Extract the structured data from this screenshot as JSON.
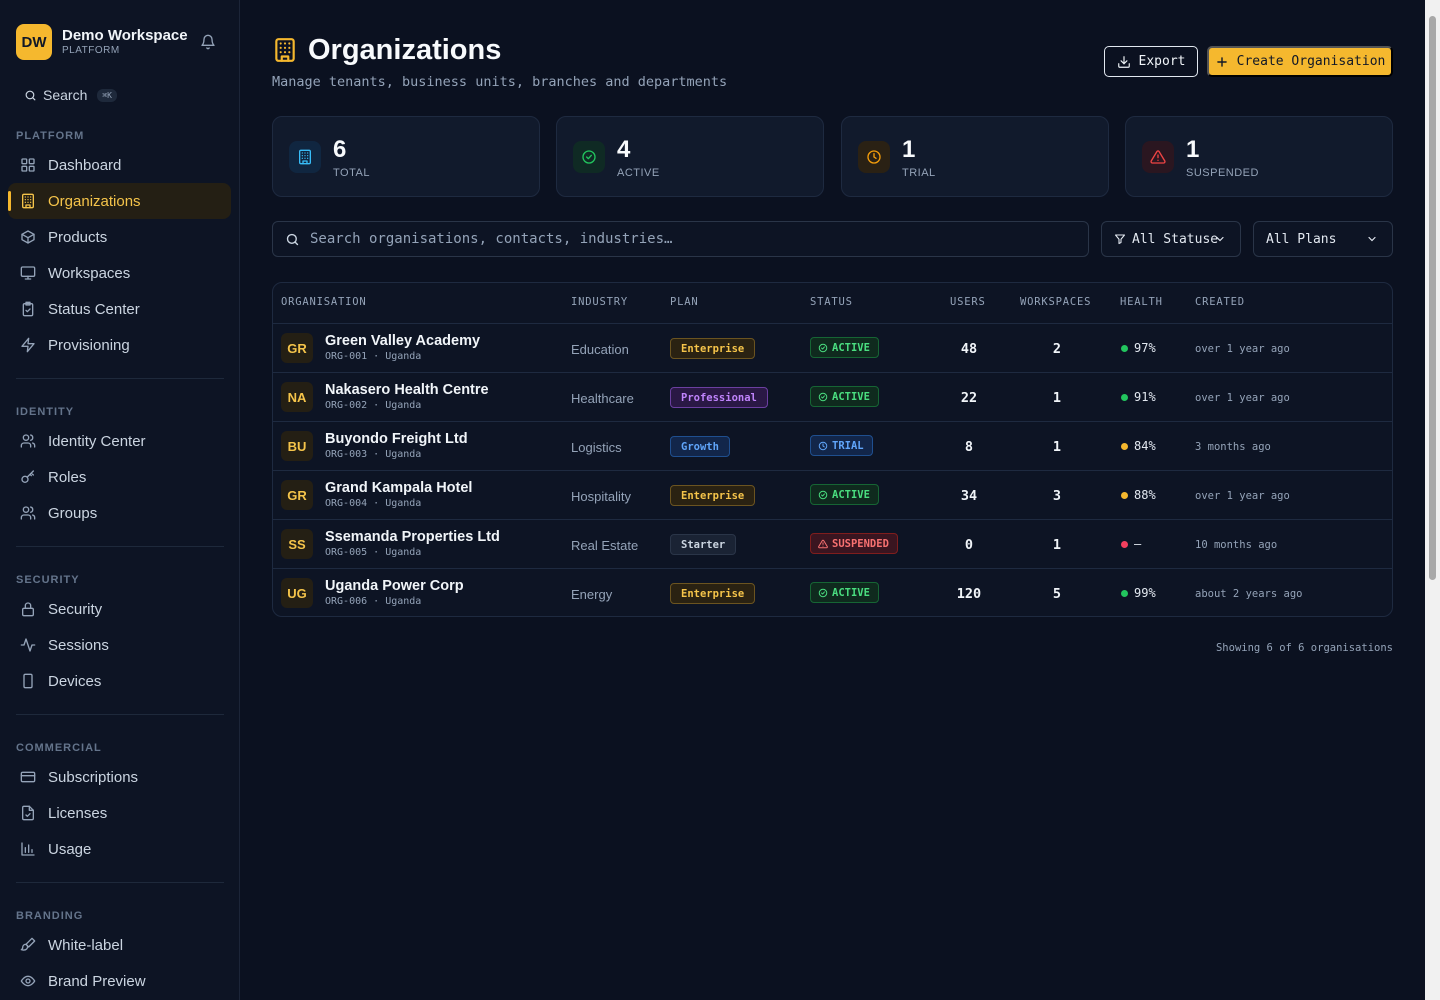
{
  "workspace": {
    "initials": "DW",
    "name": "Demo Workspace",
    "subtitle": "PLATFORM"
  },
  "sidebar": {
    "search_label": "Search",
    "search_shortcut": "⌘K",
    "sections": [
      {
        "label": "PLATFORM",
        "items": [
          {
            "label": "Dashboard",
            "icon": "grid-icon"
          },
          {
            "label": "Organizations",
            "icon": "building-icon",
            "active": true
          },
          {
            "label": "Products",
            "icon": "box-icon"
          },
          {
            "label": "Workspaces",
            "icon": "monitor-icon"
          },
          {
            "label": "Status Center",
            "icon": "clipboard-icon"
          },
          {
            "label": "Provisioning",
            "icon": "bolt-icon"
          }
        ]
      },
      {
        "label": "IDENTITY",
        "items": [
          {
            "label": "Identity Center",
            "icon": "users-icon"
          },
          {
            "label": "Roles",
            "icon": "key-icon"
          },
          {
            "label": "Groups",
            "icon": "users-icon"
          }
        ]
      },
      {
        "label": "SECURITY",
        "items": [
          {
            "label": "Security",
            "icon": "lock-icon"
          },
          {
            "label": "Sessions",
            "icon": "activity-icon"
          },
          {
            "label": "Devices",
            "icon": "phone-icon"
          }
        ]
      },
      {
        "label": "COMMERCIAL",
        "items": [
          {
            "label": "Subscriptions",
            "icon": "card-icon"
          },
          {
            "label": "Licenses",
            "icon": "file-check-icon"
          },
          {
            "label": "Usage",
            "icon": "bar-chart-icon"
          }
        ]
      },
      {
        "label": "BRANDING",
        "items": [
          {
            "label": "White-label",
            "icon": "brush-icon"
          },
          {
            "label": "Brand Preview",
            "icon": "eye-icon"
          }
        ]
      }
    ]
  },
  "header": {
    "title": "Organizations",
    "subtitle": "Manage tenants, business units, branches and departments",
    "export_label": "Export",
    "create_label": "Create Organisation"
  },
  "stats": [
    {
      "value": "6",
      "label": "TOTAL",
      "color": "#38bdf8",
      "bg": "#102640",
      "icon": "building-icon"
    },
    {
      "value": "4",
      "label": "ACTIVE",
      "color": "#22c55e",
      "bg": "#0f2a24",
      "icon": "check-circle-icon"
    },
    {
      "value": "1",
      "label": "TRIAL",
      "color": "#f59e0b",
      "bg": "#2a2114",
      "icon": "clock-icon"
    },
    {
      "value": "1",
      "label": "SUSPENDED",
      "color": "#ef4444",
      "bg": "#2a1620",
      "icon": "alert-triangle-icon"
    }
  ],
  "filters": {
    "search_placeholder": "Search organisations, contacts, industries…",
    "status": "All Statuses",
    "plan": "All Plans"
  },
  "table": {
    "columns": [
      "ORGANISATION",
      "INDUSTRY",
      "PLAN",
      "STATUS",
      "USERS",
      "WORKSPACES",
      "HEALTH",
      "CREATED"
    ],
    "rows": [
      {
        "initials": "GR",
        "name": "Green Valley Academy",
        "meta": "ORG-001 · Uganda",
        "industry": "Education",
        "plan": "Enterprise",
        "status": "ACTIVE",
        "users": "48",
        "workspaces": "2",
        "health": "97%",
        "health_color": "#22c55e",
        "created": "over 1 year ago"
      },
      {
        "initials": "NA",
        "name": "Nakasero Health Centre",
        "meta": "ORG-002 · Uganda",
        "industry": "Healthcare",
        "plan": "Professional",
        "status": "ACTIVE",
        "users": "22",
        "workspaces": "1",
        "health": "91%",
        "health_color": "#22c55e",
        "created": "over 1 year ago"
      },
      {
        "initials": "BU",
        "name": "Buyondo Freight Ltd",
        "meta": "ORG-003 · Uganda",
        "industry": "Logistics",
        "plan": "Growth",
        "status": "TRIAL",
        "users": "8",
        "workspaces": "1",
        "health": "84%",
        "health_color": "#f5b82e",
        "created": "3 months ago"
      },
      {
        "initials": "GR",
        "name": "Grand Kampala Hotel",
        "meta": "ORG-004 · Uganda",
        "industry": "Hospitality",
        "plan": "Enterprise",
        "status": "ACTIVE",
        "users": "34",
        "workspaces": "3",
        "health": "88%",
        "health_color": "#f5b82e",
        "created": "over 1 year ago"
      },
      {
        "initials": "SS",
        "name": "Ssemanda Properties Ltd",
        "meta": "ORG-005 · Uganda",
        "industry": "Real Estate",
        "plan": "Starter",
        "status": "SUSPENDED",
        "users": "0",
        "workspaces": "1",
        "health": "—",
        "health_color": "#f43f5e",
        "created": "10 months ago"
      },
      {
        "initials": "UG",
        "name": "Uganda Power Corp",
        "meta": "ORG-006 · Uganda",
        "industry": "Energy",
        "plan": "Enterprise",
        "status": "ACTIVE",
        "users": "120",
        "workspaces": "5",
        "health": "99%",
        "health_color": "#22c55e",
        "created": "about 2 years ago"
      }
    ],
    "footer": "Showing 6 of 6 organisations"
  },
  "plan_styles": {
    "Enterprise": {
      "fg": "#f5c44a",
      "bg": "#2a2212",
      "border": "#6b5420"
    },
    "Professional": {
      "fg": "#c084fc",
      "bg": "#2a1845",
      "border": "#6b3fa0"
    },
    "Growth": {
      "fg": "#60a5fa",
      "bg": "#12264a",
      "border": "#1f4f8f"
    },
    "Starter": {
      "fg": "#cbd5e1",
      "bg": "#1a2334",
      "border": "#2a3548"
    }
  },
  "status_styles": {
    "ACTIVE": {
      "fg": "#4ade80",
      "bg": "#0f2a1e",
      "border": "#166534",
      "icon": "check-circle-icon"
    },
    "TRIAL": {
      "fg": "#60a5fa",
      "bg": "#12264a",
      "border": "#1f4f8f",
      "icon": "clock-icon"
    },
    "SUSPENDED": {
      "fg": "#f87171",
      "bg": "#3a1520",
      "border": "#7f1d1d",
      "icon": "alert-triangle-icon"
    }
  }
}
